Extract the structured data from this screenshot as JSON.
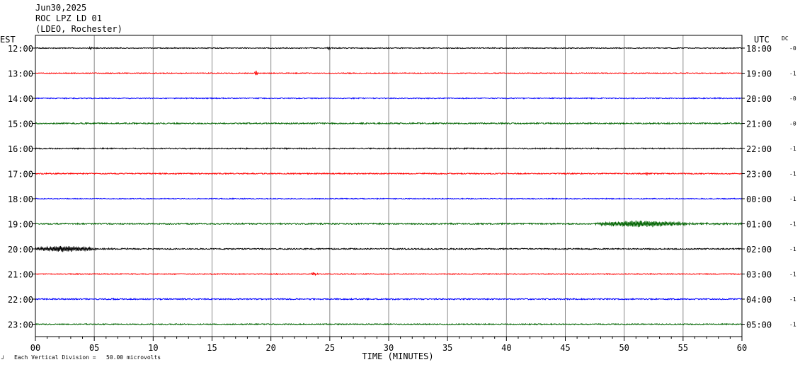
{
  "header": {
    "date": "Jun30,2025",
    "station": "ROC LPZ LD 01",
    "network": "(LDEO, Rochester)"
  },
  "left_axis_label": "EST",
  "right_axis_label": "UTC",
  "dc_label": "DC",
  "footer": {
    "scale_note": "Each Vertical Division =   50.00 microvolts"
  },
  "colors": {
    "trace_cycle": [
      "#000000",
      "#ff0000",
      "#0000ff",
      "#006400"
    ],
    "grid": "#888888",
    "frame": "#000000"
  },
  "chart_data": {
    "type": "line",
    "xlabel": "TIME (MINUTES)",
    "xlim": [
      0,
      60
    ],
    "x_tick_labels": [
      "00",
      "05",
      "10",
      "15",
      "20",
      "25",
      "30",
      "35",
      "40",
      "45",
      "50",
      "55",
      "60"
    ],
    "grid": "vertical lines every 5 minutes",
    "series": [
      {
        "est": "12:00",
        "utc": "18:00",
        "dc": "-0",
        "amplitude": 0.6,
        "events": [
          {
            "start": 4.5,
            "end": 5.0,
            "amp": 1.6
          },
          {
            "start": 24.8,
            "end": 25.2,
            "amp": 2.0
          }
        ]
      },
      {
        "est": "13:00",
        "utc": "19:00",
        "dc": "-1",
        "amplitude": 0.6,
        "events": [
          {
            "start": 18.6,
            "end": 19.0,
            "amp": 4.0
          }
        ]
      },
      {
        "est": "14:00",
        "utc": "20:00",
        "dc": "-0",
        "amplitude": 0.7,
        "events": []
      },
      {
        "est": "15:00",
        "utc": "21:00",
        "dc": "-0",
        "amplitude": 0.9,
        "events": []
      },
      {
        "est": "16:00",
        "utc": "22:00",
        "dc": "-1",
        "amplitude": 0.8,
        "events": []
      },
      {
        "est": "17:00",
        "utc": "23:00",
        "dc": "-1",
        "amplitude": 0.8,
        "events": [
          {
            "start": 51.5,
            "end": 52.5,
            "amp": 1.6
          }
        ]
      },
      {
        "est": "18:00",
        "utc": "00:00",
        "dc": "-1",
        "amplitude": 0.6,
        "events": []
      },
      {
        "est": "19:00",
        "utc": "01:00",
        "dc": "-1",
        "amplitude": 0.9,
        "events": [
          {
            "start": 47.3,
            "end": 60.0,
            "amp": 4.5
          }
        ]
      },
      {
        "est": "20:00",
        "utc": "02:00",
        "dc": "-1",
        "amplitude": 0.8,
        "events": [
          {
            "start": 0.0,
            "end": 8.0,
            "amp": 4.0
          }
        ]
      },
      {
        "est": "21:00",
        "utc": "03:00",
        "dc": "-1",
        "amplitude": 0.6,
        "events": [
          {
            "start": 23.4,
            "end": 24.0,
            "amp": 2.5
          }
        ]
      },
      {
        "est": "22:00",
        "utc": "04:00",
        "dc": "-1",
        "amplitude": 0.8,
        "events": []
      },
      {
        "est": "23:00",
        "utc": "05:00",
        "dc": "-1",
        "amplitude": 0.7,
        "events": []
      }
    ]
  }
}
